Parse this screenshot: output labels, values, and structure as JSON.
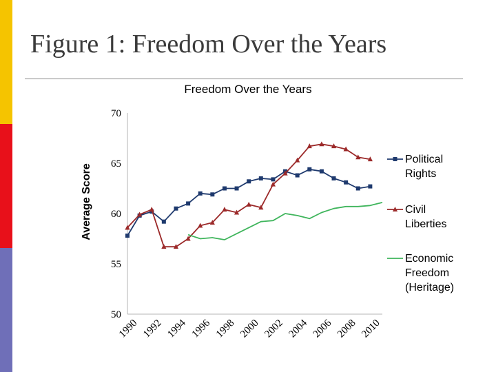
{
  "slide": {
    "title": "Figure 1: Freedom Over the Years",
    "accent_colors": [
      "#f5c400",
      "#e8101a",
      "#6f6fb8"
    ]
  },
  "chart_data": {
    "type": "line",
    "title": "Freedom Over the Years",
    "xlabel": "",
    "ylabel": "Average Score",
    "xlim": [
      1990,
      2011
    ],
    "ylim": [
      50,
      70
    ],
    "y_ticks": [
      "50",
      "55",
      "60",
      "65",
      "70"
    ],
    "x_ticks": [
      "1990",
      "1992",
      "1994",
      "1996",
      "1998",
      "2000",
      "2002",
      "2004",
      "2006",
      "2008",
      "2010"
    ],
    "grid": false,
    "legend_position": "right",
    "series": [
      {
        "name": "Political Rights",
        "color": "#1f3a6e",
        "marker": "square",
        "x": [
          1990,
          1991,
          1992,
          1993,
          1994,
          1995,
          1996,
          1997,
          1998,
          1999,
          2000,
          2001,
          2002,
          2003,
          2004,
          2005,
          2006,
          2007,
          2008,
          2009,
          2010
        ],
        "values": [
          57.8,
          59.8,
          60.2,
          59.2,
          60.5,
          61.0,
          62.0,
          61.9,
          62.5,
          62.5,
          63.2,
          63.5,
          63.4,
          64.2,
          63.8,
          64.4,
          64.2,
          63.5,
          63.1,
          62.5,
          62.7
        ]
      },
      {
        "name": "Civil Liberties",
        "color": "#9c2a2a",
        "marker": "triangle",
        "x": [
          1990,
          1991,
          1992,
          1993,
          1994,
          1995,
          1996,
          1997,
          1998,
          1999,
          2000,
          2001,
          2002,
          2003,
          2004,
          2005,
          2006,
          2007,
          2008,
          2009,
          2010
        ],
        "values": [
          58.6,
          59.9,
          60.4,
          56.7,
          56.7,
          57.5,
          58.8,
          59.1,
          60.4,
          60.1,
          60.9,
          60.6,
          62.9,
          64.0,
          65.3,
          66.7,
          66.9,
          66.7,
          66.4,
          65.6,
          65.4
        ]
      },
      {
        "name": "Economic Freedom (Heritage)",
        "color": "#3fb55c",
        "marker": "none",
        "x": [
          1995,
          1996,
          1997,
          1998,
          1999,
          2000,
          2001,
          2002,
          2003,
          2004,
          2005,
          2006,
          2007,
          2008,
          2009,
          2010,
          2011
        ],
        "values": [
          57.9,
          57.5,
          57.6,
          57.4,
          58.0,
          58.6,
          59.2,
          59.3,
          60.0,
          59.8,
          59.5,
          60.1,
          60.5,
          60.7,
          60.7,
          60.8,
          61.1
        ]
      }
    ],
    "legend_lines": [
      [
        "Political",
        "Rights"
      ],
      [
        "Civil",
        "Liberties"
      ],
      [
        "Economic",
        "Freedom",
        "(Heritage)"
      ]
    ]
  }
}
